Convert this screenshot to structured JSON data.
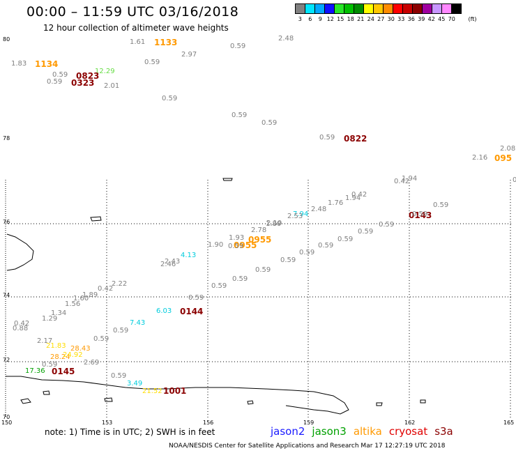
{
  "header": {
    "title": "00:00 – 11:59 UTC 03/16/2018",
    "subtitle": "12 hour collection of altimeter wave heights"
  },
  "legend": {
    "unit": "(ft)",
    "bins": [
      {
        "label": "3",
        "color": "#808080"
      },
      {
        "label": "6",
        "color": "#00e5ff"
      },
      {
        "label": "9",
        "color": "#00a8ff"
      },
      {
        "label": "12",
        "color": "#1010ff"
      },
      {
        "label": "15",
        "color": "#28e628"
      },
      {
        "label": "18",
        "color": "#00c000"
      },
      {
        "label": "21",
        "color": "#008c00"
      },
      {
        "label": "24",
        "color": "#ffff00"
      },
      {
        "label": "27",
        "color": "#ffc800"
      },
      {
        "label": "30",
        "color": "#ff8c00"
      },
      {
        "label": "33",
        "color": "#ff0000"
      },
      {
        "label": "36",
        "color": "#c80000"
      },
      {
        "label": "39",
        "color": "#8c0000"
      },
      {
        "label": "42",
        "color": "#a000a0"
      },
      {
        "label": "45",
        "color": "#c896ff"
      },
      {
        "label": "70",
        "color": "#ff88ff"
      },
      {
        "label": "",
        "color": "#000000"
      }
    ]
  },
  "axes": {
    "y_labels": [
      "80",
      "78",
      "76",
      "74",
      "72",
      "70"
    ],
    "x_labels": [
      "150",
      "153",
      "156",
      "159",
      "162",
      "165"
    ]
  },
  "footer": {
    "note": "note: 1) Time is in UTC; 2) SWH is in feet",
    "missions": [
      {
        "name": "jason2",
        "color": "#1a1aff"
      },
      {
        "name": "jason3",
        "color": "#00a000"
      },
      {
        "name": "altika",
        "color": "#ff9900"
      },
      {
        "name": "cryosat",
        "color": "#e00000"
      },
      {
        "name": "s3a",
        "color": "#8b0000"
      }
    ],
    "credit": "NOAA/NESDIS Center for Satellite Applications and Research    Mar 17 12:27:19 UTC 2018"
  },
  "observations": [
    {
      "text": "1.83",
      "color": "#808080",
      "kind": "val"
    },
    {
      "text": "1134",
      "color": "#ff9900",
      "kind": "time"
    },
    {
      "text": "1.61",
      "color": "#808080",
      "kind": "val"
    },
    {
      "text": "1133",
      "color": "#ff9900",
      "kind": "time"
    },
    {
      "text": "2.97",
      "color": "#808080",
      "kind": "val"
    },
    {
      "text": "0.59",
      "color": "#808080",
      "kind": "val"
    },
    {
      "text": "2.48",
      "color": "#808080",
      "kind": "val"
    },
    {
      "text": "0.59",
      "color": "#808080",
      "kind": "val"
    },
    {
      "text": "12.29",
      "color": "#66dd44",
      "kind": "val"
    },
    {
      "text": "0.59",
      "color": "#808080",
      "kind": "val"
    },
    {
      "text": "0823",
      "color": "#8b0000",
      "kind": "time"
    },
    {
      "text": "0.59",
      "color": "#808080",
      "kind": "val"
    },
    {
      "text": "0323",
      "color": "#8b0000",
      "kind": "time"
    },
    {
      "text": "2.01",
      "color": "#808080",
      "kind": "val"
    },
    {
      "text": "0.59",
      "color": "#808080",
      "kind": "val"
    },
    {
      "text": "0.59",
      "color": "#808080",
      "kind": "val"
    },
    {
      "text": "0.59",
      "color": "#808080",
      "kind": "val"
    },
    {
      "text": "0.59",
      "color": "#808080",
      "kind": "val"
    },
    {
      "text": "0822",
      "color": "#8b0000",
      "kind": "time"
    },
    {
      "text": "2.08",
      "color": "#808080",
      "kind": "val"
    },
    {
      "text": "2.16",
      "color": "#808080",
      "kind": "val"
    },
    {
      "text": "095",
      "color": "#ff9900",
      "kind": "time"
    },
    {
      "text": "1.94",
      "color": "#808080",
      "kind": "val"
    },
    {
      "text": "0.42",
      "color": "#808080",
      "kind": "val"
    },
    {
      "text": "0.42",
      "color": "#808080",
      "kind": "val"
    },
    {
      "text": "1.76",
      "color": "#808080",
      "kind": "val"
    },
    {
      "text": "1.94",
      "color": "#808080",
      "kind": "val"
    },
    {
      "text": "2.48",
      "color": "#808080",
      "kind": "val"
    },
    {
      "text": "7.94",
      "color": "#00ccdd",
      "kind": "val"
    },
    {
      "text": "2.53",
      "color": "#808080",
      "kind": "val"
    },
    {
      "text": "2.10",
      "color": "#808080",
      "kind": "val"
    },
    {
      "text": "1.80",
      "color": "#808080",
      "kind": "val"
    },
    {
      "text": "2.78",
      "color": "#808080",
      "kind": "val"
    },
    {
      "text": "0955",
      "color": "#ff9900",
      "kind": "time"
    },
    {
      "text": "0955",
      "color": "#ff9900",
      "kind": "time"
    },
    {
      "text": "1.93",
      "color": "#808080",
      "kind": "val"
    },
    {
      "text": "1.90",
      "color": "#808080",
      "kind": "val"
    },
    {
      "text": "0.59",
      "color": "#808080",
      "kind": "val"
    },
    {
      "text": "0.59",
      "color": "#808080",
      "kind": "val"
    },
    {
      "text": "0143",
      "color": "#8b0000",
      "kind": "time"
    },
    {
      "text": "0.59",
      "color": "#808080",
      "kind": "val"
    },
    {
      "text": "0.59",
      "color": "#808080",
      "kind": "val"
    },
    {
      "text": "0.59",
      "color": "#808080",
      "kind": "val"
    },
    {
      "text": "0.59",
      "color": "#808080",
      "kind": "val"
    },
    {
      "text": "0.59",
      "color": "#808080",
      "kind": "val"
    },
    {
      "text": "0.59",
      "color": "#808080",
      "kind": "val"
    },
    {
      "text": "0.59",
      "color": "#808080",
      "kind": "val"
    },
    {
      "text": "0.59",
      "color": "#808080",
      "kind": "val"
    },
    {
      "text": "0.59",
      "color": "#808080",
      "kind": "val"
    },
    {
      "text": "4.13",
      "color": "#00ccdd",
      "kind": "val"
    },
    {
      "text": "2.43",
      "color": "#808080",
      "kind": "val"
    },
    {
      "text": "2.46",
      "color": "#808080",
      "kind": "val"
    },
    {
      "text": "2.22",
      "color": "#808080",
      "kind": "val"
    },
    {
      "text": "0.42",
      "color": "#808080",
      "kind": "val"
    },
    {
      "text": "1.89",
      "color": "#808080",
      "kind": "val"
    },
    {
      "text": "1.60",
      "color": "#808080",
      "kind": "val"
    },
    {
      "text": "1.56",
      "color": "#808080",
      "kind": "val"
    },
    {
      "text": "0.59",
      "color": "#808080",
      "kind": "val"
    },
    {
      "text": "0.59",
      "color": "#808080",
      "kind": "val"
    },
    {
      "text": "6.03",
      "color": "#00ccdd",
      "kind": "val"
    },
    {
      "text": "0144",
      "color": "#8b0000",
      "kind": "time"
    },
    {
      "text": "1.34",
      "color": "#808080",
      "kind": "val"
    },
    {
      "text": "1.29",
      "color": "#808080",
      "kind": "val"
    },
    {
      "text": "0.42",
      "color": "#808080",
      "kind": "val"
    },
    {
      "text": "7.43",
      "color": "#00ccdd",
      "kind": "val"
    },
    {
      "text": "0.88",
      "color": "#808080",
      "kind": "val"
    },
    {
      "text": "0.59",
      "color": "#808080",
      "kind": "val"
    },
    {
      "text": "2.17",
      "color": "#808080",
      "kind": "val"
    },
    {
      "text": "0.59",
      "color": "#808080",
      "kind": "val"
    },
    {
      "text": "21.83",
      "color": "#ffdd00",
      "kind": "val"
    },
    {
      "text": "28.43",
      "color": "#ff9900",
      "kind": "val"
    },
    {
      "text": "28.24",
      "color": "#ff9900",
      "kind": "val"
    },
    {
      "text": "24.92",
      "color": "#ffdd00",
      "kind": "val"
    },
    {
      "text": "2.69",
      "color": "#808080",
      "kind": "val"
    },
    {
      "text": "0.59",
      "color": "#808080",
      "kind": "val"
    },
    {
      "text": "17.36",
      "color": "#00a000",
      "kind": "val"
    },
    {
      "text": "0145",
      "color": "#8b0000",
      "kind": "time"
    },
    {
      "text": "0.59",
      "color": "#808080",
      "kind": "val"
    },
    {
      "text": "3.49",
      "color": "#00ccdd",
      "kind": "val"
    },
    {
      "text": "21.52",
      "color": "#ffdd00",
      "kind": "val"
    },
    {
      "text": "1001",
      "color": "#8b0000",
      "kind": "time"
    },
    {
      "text": "0",
      "color": "#808080",
      "kind": "val"
    }
  ]
}
